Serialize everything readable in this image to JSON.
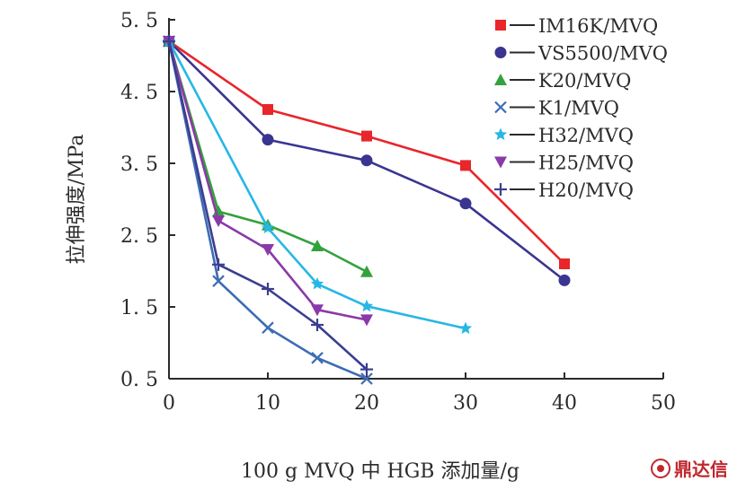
{
  "chart_data": {
    "type": "line",
    "title": "",
    "xlabel": "100 g MVQ 中 HGB 添加量/g",
    "ylabel": "拉伸强度/MPa",
    "xlim": [
      0,
      50
    ],
    "ylim": [
      0.5,
      5.5
    ],
    "xticks": [
      0,
      10,
      20,
      30,
      40,
      50
    ],
    "yticks": [
      0.5,
      1.5,
      2.5,
      3.5,
      4.5,
      5.5
    ],
    "ytick_labels": [
      "0. 5",
      "1. 5",
      "2. 5",
      "3. 5",
      "4. 5",
      "5. 5"
    ],
    "grid": false,
    "legend_position": "top-right",
    "series": [
      {
        "name": "IM16K/MVQ",
        "color": "#e8262b",
        "marker": "square",
        "x": [
          0,
          10,
          20,
          30,
          40
        ],
        "y": [
          5.2,
          4.25,
          3.88,
          3.47,
          2.1
        ]
      },
      {
        "name": "VS5500/MVQ",
        "color": "#3a3590",
        "marker": "circle",
        "x": [
          0,
          10,
          20,
          30,
          40
        ],
        "y": [
          5.2,
          3.83,
          3.54,
          2.94,
          1.87
        ]
      },
      {
        "name": "K20/MVQ",
        "color": "#33a23c",
        "marker": "triangle-up",
        "x": [
          0,
          5,
          10,
          15,
          20
        ],
        "y": [
          5.2,
          2.83,
          2.64,
          2.35,
          1.99
        ]
      },
      {
        "name": "K1/MVQ",
        "color": "#3d6cb5",
        "marker": "x",
        "x": [
          0,
          5,
          10,
          15,
          20
        ],
        "y": [
          5.2,
          1.86,
          1.21,
          0.79,
          0.5
        ]
      },
      {
        "name": "H32/MVQ",
        "color": "#27b7e6",
        "marker": "star",
        "x": [
          0,
          10,
          15,
          20,
          30
        ],
        "y": [
          5.2,
          2.6,
          1.82,
          1.51,
          1.2
        ]
      },
      {
        "name": "H25/MVQ",
        "color": "#8a3aa8",
        "marker": "triangle-down",
        "x": [
          0,
          5,
          10,
          15,
          20
        ],
        "y": [
          5.2,
          2.7,
          2.3,
          1.46,
          1.32
        ]
      },
      {
        "name": "H20/MVQ",
        "color": "#3b3e91",
        "marker": "plus",
        "x": [
          0,
          5,
          10,
          15,
          20
        ],
        "y": [
          5.2,
          2.09,
          1.75,
          1.25,
          0.63
        ]
      }
    ]
  },
  "watermark": {
    "text": "鼎达信",
    "color": "#c0272d",
    "icon": "logo-icon"
  }
}
